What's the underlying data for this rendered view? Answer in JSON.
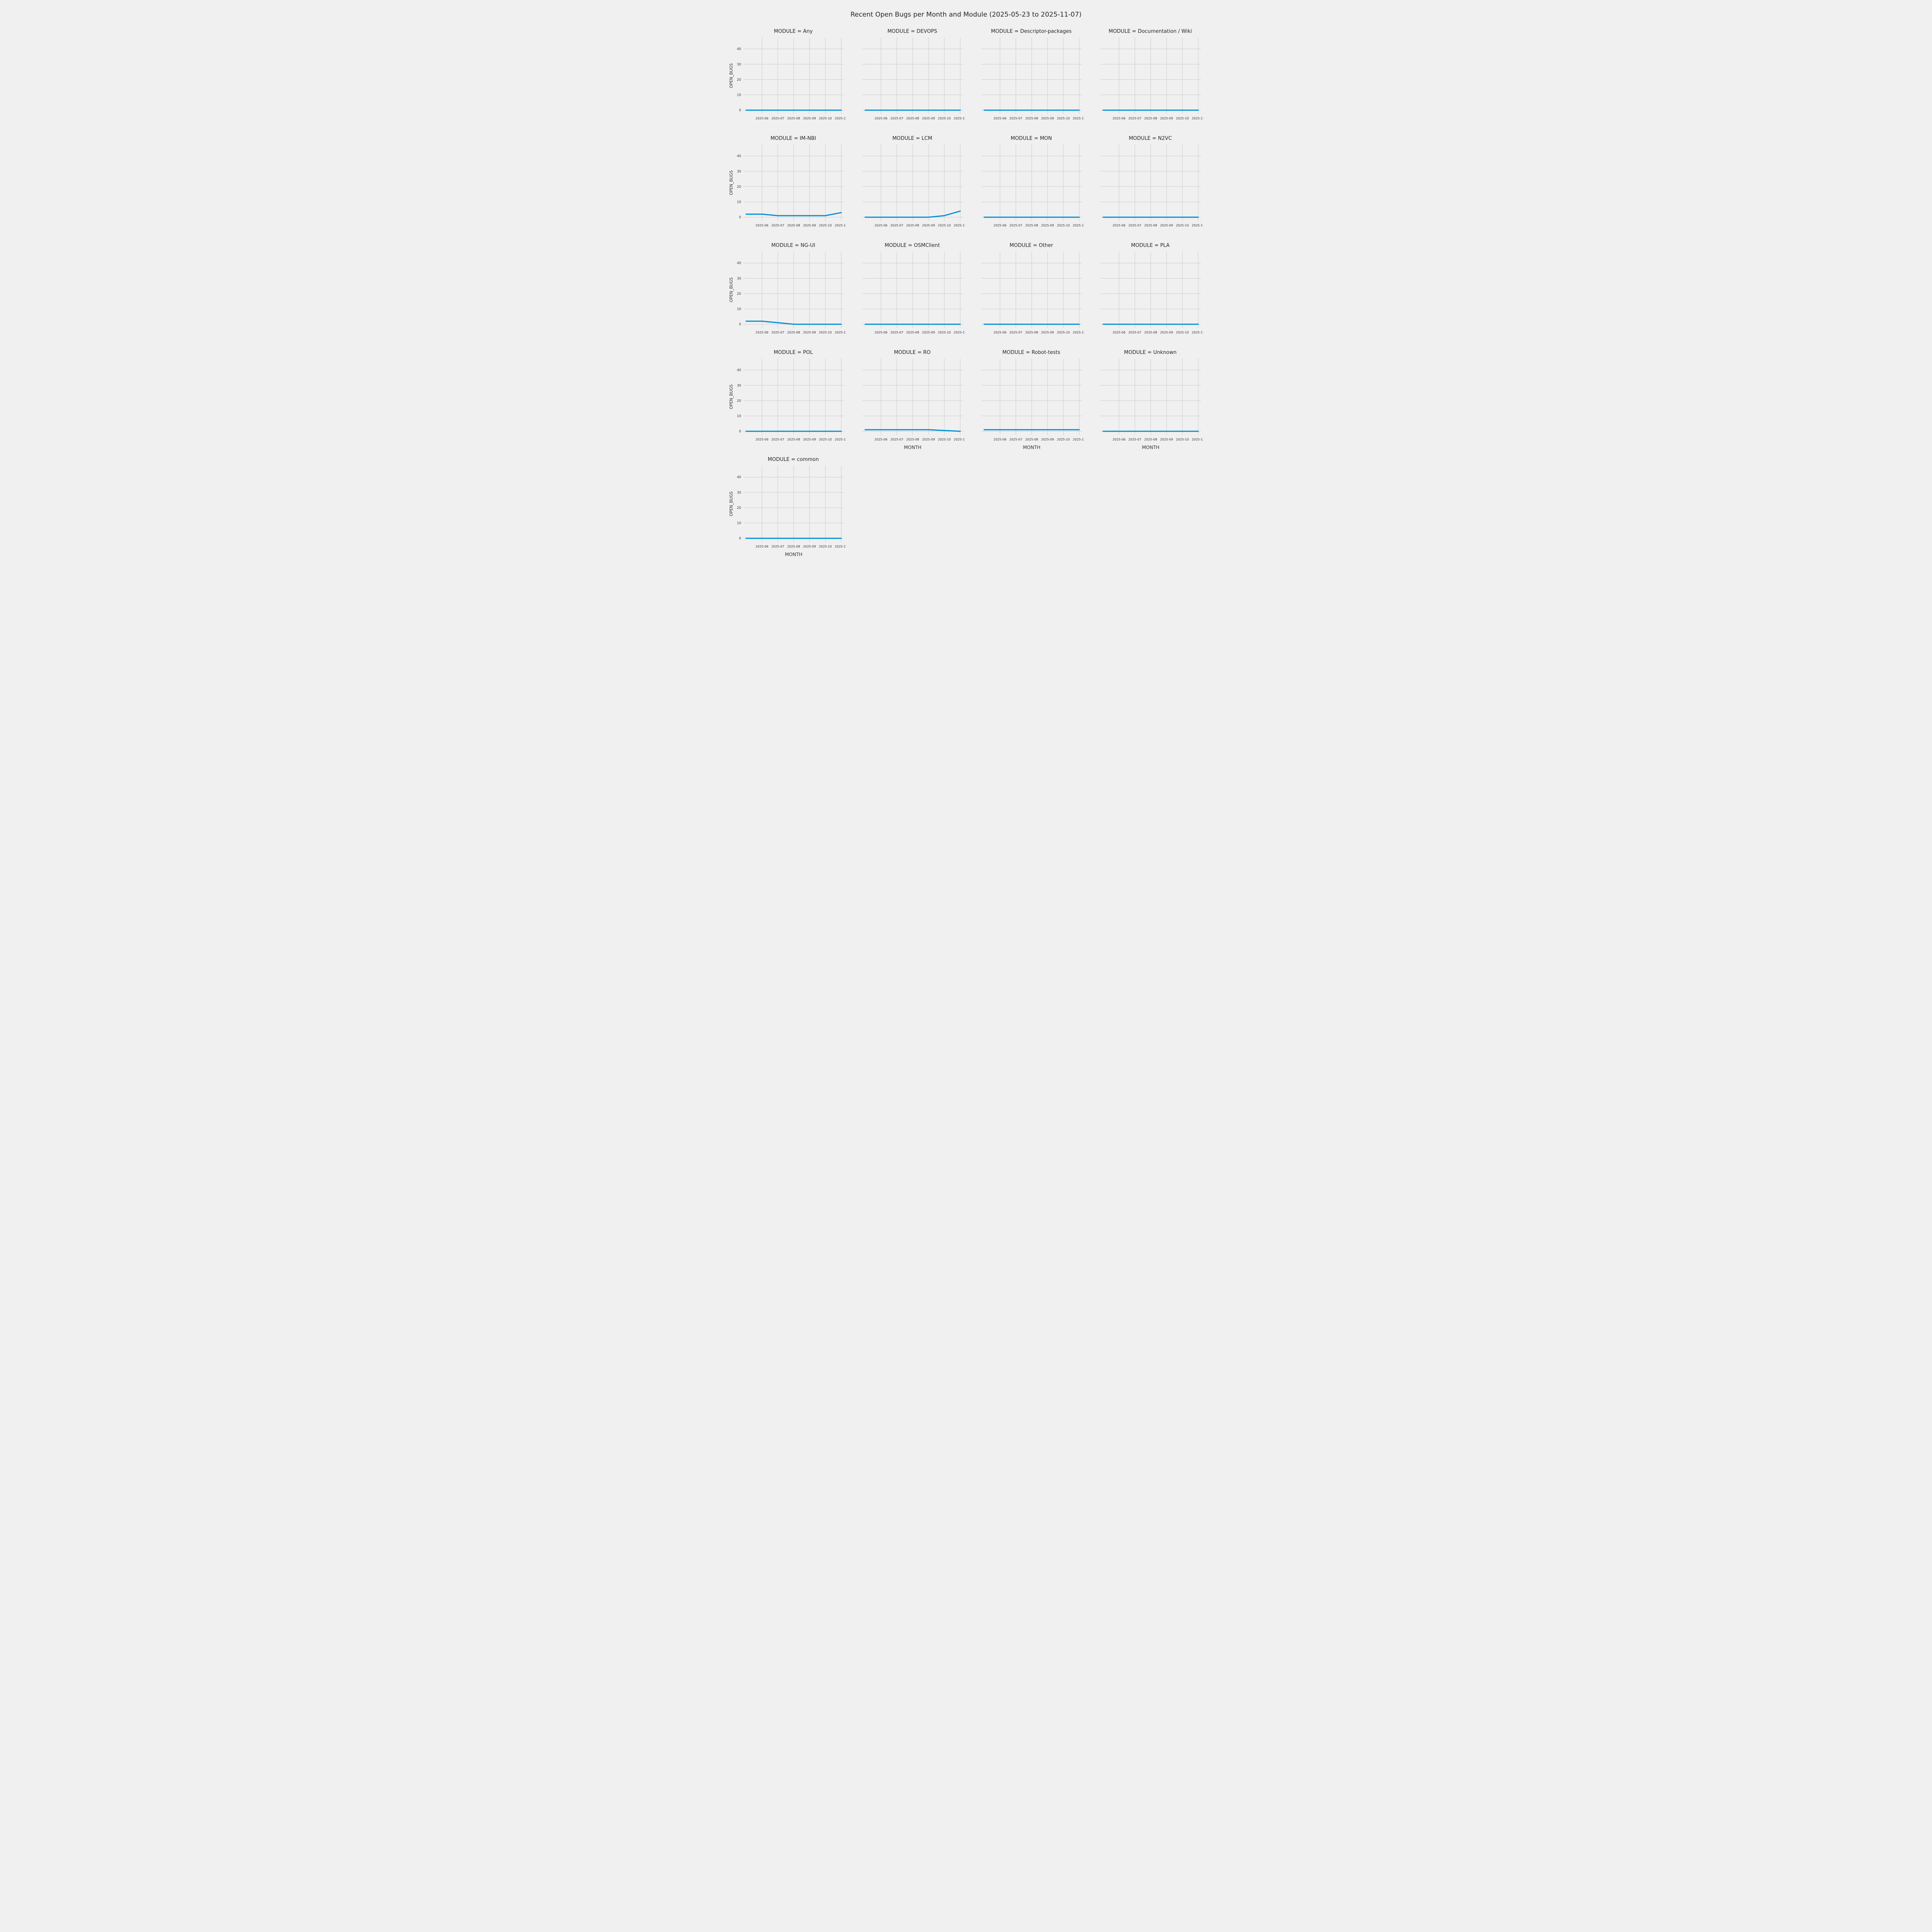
{
  "title": "Recent Open Bugs per Month and Module (2025-05-23 to 2025-11-07)",
  "chart_data": {
    "type": "line",
    "title": "Recent Open Bugs per Month and Module (2025-05-23 to 2025-11-07)",
    "xlabel": "MONTH",
    "ylabel": "OPEN_BUGS",
    "x": [
      "2025-05",
      "2025-06",
      "2025-07",
      "2025-08",
      "2025-09",
      "2025-10",
      "2025-11"
    ],
    "x_tick_labels": [
      "2025-06",
      "2025-07",
      "2025-08",
      "2025-09",
      "2025-10",
      "2025-11"
    ],
    "y_ticks": [
      0,
      10,
      20,
      30,
      40
    ],
    "ylim": [
      -2.5,
      47.5
    ],
    "grid": true,
    "legend": "none",
    "line_color": "#008fd5",
    "background_color": "#f0f0f0",
    "grid_color": "#cbcbcb",
    "facets": [
      {
        "title": "MODULE = Any",
        "module": "Any",
        "values": [
          0,
          0,
          0,
          0,
          0,
          0,
          0
        ]
      },
      {
        "title": "MODULE = DEVOPS",
        "module": "DEVOPS",
        "values": [
          0,
          0,
          0,
          0,
          0,
          0,
          0
        ]
      },
      {
        "title": "MODULE = Descriptor-packages",
        "module": "Descriptor-packages",
        "values": [
          0,
          0,
          0,
          0,
          0,
          0,
          0
        ]
      },
      {
        "title": "MODULE = Documentation / Wiki",
        "module": "Documentation / Wiki",
        "values": [
          0,
          0,
          0,
          0,
          0,
          0,
          0
        ]
      },
      {
        "title": "MODULE = IM-NBI",
        "module": "IM-NBI",
        "values": [
          2,
          2,
          1,
          1,
          1,
          1,
          3
        ]
      },
      {
        "title": "MODULE = LCM",
        "module": "LCM",
        "values": [
          0,
          0,
          0,
          0,
          0,
          1,
          4
        ]
      },
      {
        "title": "MODULE = MON",
        "module": "MON",
        "values": [
          0,
          0,
          0,
          0,
          0,
          0,
          0
        ]
      },
      {
        "title": "MODULE = N2VC",
        "module": "N2VC",
        "values": [
          0,
          0,
          0,
          0,
          0,
          0,
          0
        ]
      },
      {
        "title": "MODULE = NG-UI",
        "module": "NG-UI",
        "values": [
          2,
          2,
          1,
          0,
          0,
          0,
          0
        ]
      },
      {
        "title": "MODULE = OSMClient",
        "module": "OSMClient",
        "values": [
          0,
          0,
          0,
          0,
          0,
          0,
          0
        ]
      },
      {
        "title": "MODULE = Other",
        "module": "Other",
        "values": [
          0,
          0,
          0,
          0,
          0,
          0,
          0
        ]
      },
      {
        "title": "MODULE = PLA",
        "module": "PLA",
        "values": [
          0,
          0,
          0,
          0,
          0,
          0,
          0
        ]
      },
      {
        "title": "MODULE = POL",
        "module": "POL",
        "values": [
          0,
          0,
          0,
          0,
          0,
          0,
          0
        ]
      },
      {
        "title": "MODULE = RO",
        "module": "RO",
        "values": [
          1,
          1,
          1,
          1,
          1,
          0.5,
          0
        ]
      },
      {
        "title": "MODULE = Robot-tests",
        "module": "Robot-tests",
        "values": [
          1,
          1,
          1,
          1,
          1,
          1,
          1
        ]
      },
      {
        "title": "MODULE = Unknown",
        "module": "Unknown",
        "values": [
          0,
          0,
          0,
          0,
          0,
          0,
          0
        ]
      },
      {
        "title": "MODULE = common",
        "module": "common",
        "values": [
          0,
          0,
          0,
          0,
          0,
          0,
          0
        ]
      }
    ]
  }
}
